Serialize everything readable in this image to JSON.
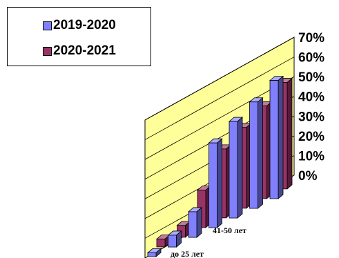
{
  "chart_data": {
    "type": "bar",
    "categories": [
      "до 25 лет",
      "",
      "",
      "41-50 лет",
      "",
      "",
      ""
    ],
    "series": [
      {
        "name": "2019-2020",
        "values": [
          2,
          6,
          13,
          43,
          49,
          54,
          60
        ],
        "color": "#8080ff"
      },
      {
        "name": "2020-2021",
        "values": [
          4,
          6,
          19,
          35,
          41,
          47,
          54
        ],
        "color": "#993366"
      }
    ],
    "y_ticks": [
      "0%",
      "10%",
      "20%",
      "30%",
      "40%",
      "50%",
      "60%",
      "70%"
    ],
    "ylim": [
      0,
      70
    ],
    "grid": true,
    "legend_position": "top-left",
    "wall_color": "#ffff99"
  }
}
